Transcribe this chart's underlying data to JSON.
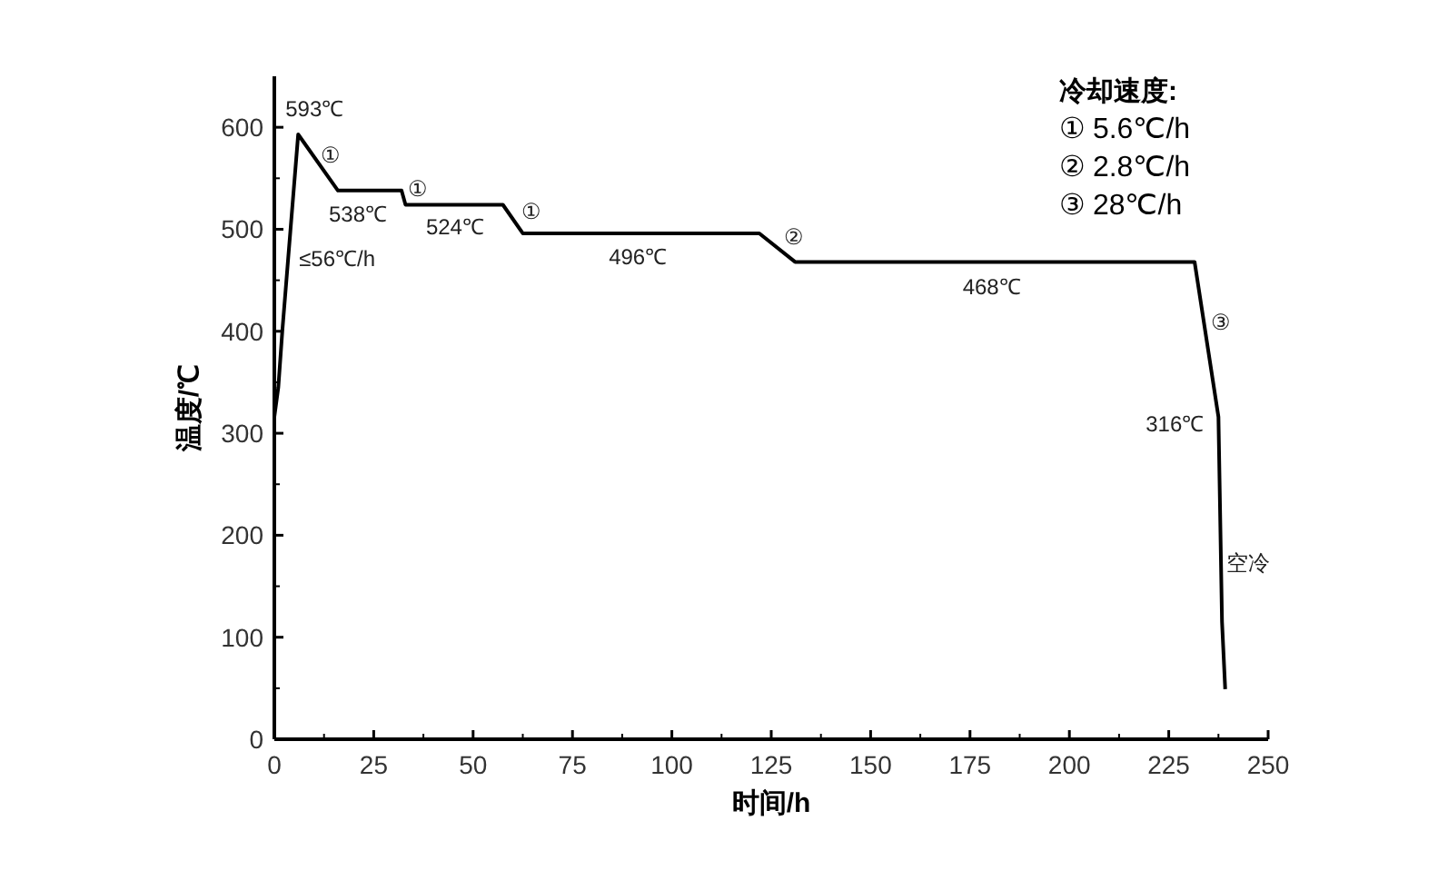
{
  "chart_data": {
    "type": "line",
    "xlabel": "时间/h",
    "ylabel": "温度/℃",
    "x": [
      0,
      1,
      2,
      6,
      16,
      32,
      33,
      57.5,
      62.5,
      122,
      131,
      231.5,
      237.5,
      238.4,
      239.2
    ],
    "series": [
      {
        "color": "#000000",
        "values": [
          316,
          345,
          400,
          593,
          538,
          538,
          524,
          524,
          496,
          496,
          468,
          468,
          316,
          115,
          49
        ]
      }
    ],
    "xlim": [
      0,
      250
    ],
    "ylim": [
      0,
      650
    ],
    "xticks": [
      0,
      25,
      50,
      75,
      100,
      125,
      150,
      175,
      200,
      225,
      250
    ],
    "yticks": [
      0,
      100,
      200,
      300,
      400,
      500,
      600
    ],
    "grid": false,
    "marker": "none",
    "line_style": "solid",
    "annotations": [
      {
        "text": "593℃",
        "x": 6,
        "y": 593
      },
      {
        "text": "①",
        "x": 11,
        "y": 565.5
      },
      {
        "text": "538℃",
        "x": 16,
        "y": 538
      },
      {
        "text": "①",
        "x": 32.5,
        "y": 531
      },
      {
        "text": "524℃",
        "x": 45,
        "y": 524
      },
      {
        "text": "①",
        "x": 60,
        "y": 510
      },
      {
        "text": "≤56℃/h",
        "x": 3,
        "y": 450
      },
      {
        "text": "496℃",
        "x": 91,
        "y": 496
      },
      {
        "text": "②",
        "x": 126.5,
        "y": 482
      },
      {
        "text": "468℃",
        "x": 180,
        "y": 468
      },
      {
        "text": "③",
        "x": 234,
        "y": 405
      },
      {
        "text": "316℃",
        "x": 237.5,
        "y": 316
      },
      {
        "text": "空冷",
        "x": 238.1,
        "y": 173
      },
      "冷却速度:",
      "①  5.6℃/h",
      "②  2.8℃/h",
      "③  28℃/h"
    ]
  }
}
